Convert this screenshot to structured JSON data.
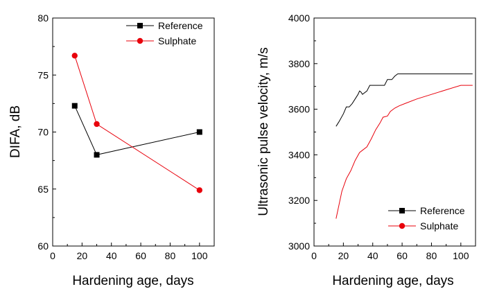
{
  "colors": {
    "reference": "#000000",
    "sulphate": "#e8000b",
    "axis": "#000000"
  },
  "chart_data": [
    {
      "type": "line",
      "xlabel": "Hardening age, days",
      "ylabel": "DIFA, dB",
      "xlim": [
        0,
        110
      ],
      "ylim": [
        60,
        80
      ],
      "xticks": [
        0,
        20,
        40,
        60,
        80,
        100
      ],
      "yticks": [
        60,
        65,
        70,
        75,
        80
      ],
      "legend_position": "top-right",
      "series": [
        {
          "name": "Reference",
          "marker": "square",
          "color_key": "reference",
          "points": [
            [
              15,
              72.3
            ],
            [
              30,
              68.0
            ],
            [
              100,
              70.0
            ]
          ]
        },
        {
          "name": "Sulphate",
          "marker": "circle",
          "color_key": "sulphate",
          "points": [
            [
              15,
              76.7
            ],
            [
              30,
              70.7
            ],
            [
              100,
              64.9
            ]
          ]
        }
      ]
    },
    {
      "type": "line",
      "xlabel": "Hardening age, days",
      "ylabel": "Ultrasonic pulse velocity, m/s",
      "xlim": [
        0,
        110
      ],
      "ylim": [
        3000,
        4000
      ],
      "xticks": [
        0,
        20,
        40,
        60,
        80,
        100
      ],
      "yticks": [
        3000,
        3200,
        3400,
        3600,
        3800,
        4000
      ],
      "legend_position": "bottom-right",
      "series": [
        {
          "name": "Reference",
          "marker": "square",
          "color_key": "reference",
          "points": [
            [
              15,
              3525
            ],
            [
              17,
              3545
            ],
            [
              20,
              3580
            ],
            [
              22,
              3610
            ],
            [
              24,
              3610
            ],
            [
              26,
              3625
            ],
            [
              28,
              3645
            ],
            [
              30,
              3665
            ],
            [
              31,
              3680
            ],
            [
              32,
              3675
            ],
            [
              33,
              3665
            ],
            [
              36,
              3680
            ],
            [
              38,
              3705
            ],
            [
              40,
              3705
            ],
            [
              42,
              3705
            ],
            [
              48,
              3705
            ],
            [
              50,
              3730
            ],
            [
              53,
              3730
            ],
            [
              55,
              3745
            ],
            [
              57,
              3755
            ],
            [
              60,
              3755
            ],
            [
              70,
              3755
            ],
            [
              80,
              3755
            ],
            [
              90,
              3755
            ],
            [
              100,
              3755
            ],
            [
              108,
              3755
            ]
          ]
        },
        {
          "name": "Sulphate",
          "marker": "circle",
          "color_key": "sulphate",
          "points": [
            [
              15,
              3120
            ],
            [
              17,
              3180
            ],
            [
              19,
              3240
            ],
            [
              22,
              3295
            ],
            [
              25,
              3330
            ],
            [
              28,
              3375
            ],
            [
              31,
              3410
            ],
            [
              33,
              3420
            ],
            [
              36,
              3435
            ],
            [
              39,
              3470
            ],
            [
              42,
              3510
            ],
            [
              45,
              3540
            ],
            [
              47,
              3565
            ],
            [
              50,
              3570
            ],
            [
              52,
              3590
            ],
            [
              55,
              3605
            ],
            [
              58,
              3615
            ],
            [
              62,
              3625
            ],
            [
              70,
              3645
            ],
            [
              80,
              3665
            ],
            [
              90,
              3685
            ],
            [
              100,
              3705
            ],
            [
              108,
              3705
            ]
          ]
        }
      ]
    }
  ]
}
